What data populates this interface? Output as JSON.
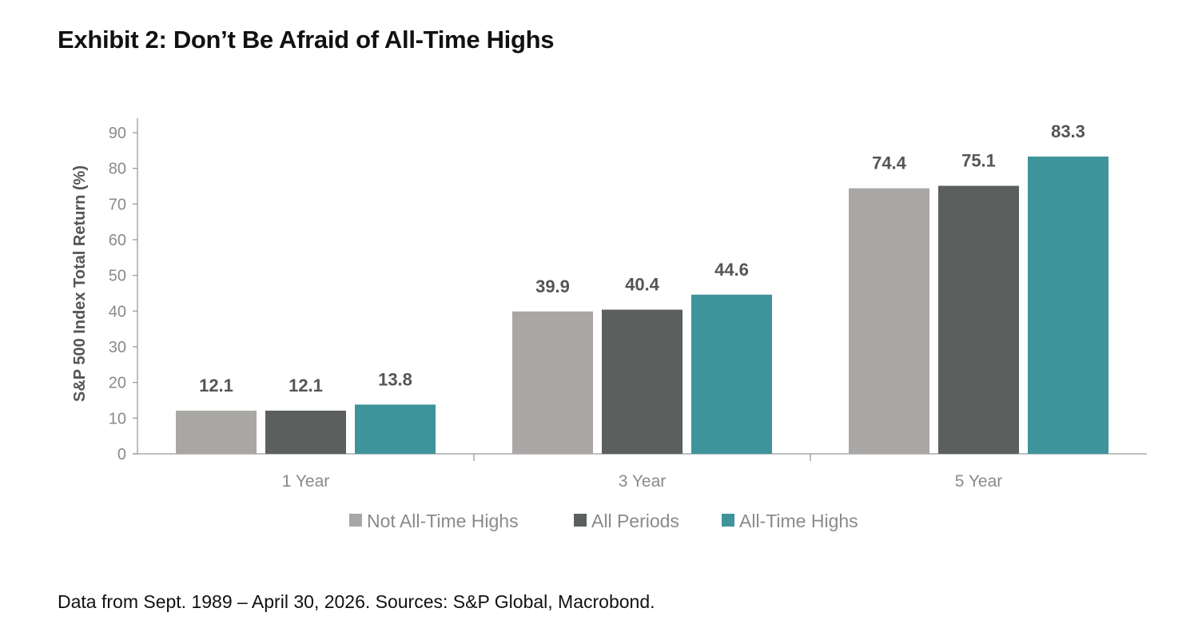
{
  "header": {
    "title": "Exhibit 2: Don’t Be Afraid of All-Time Highs"
  },
  "footer": {
    "source": "Data from Sept. 1989 – April 30, 2026. Sources: S&P Global, Macrobond."
  },
  "chart_data": {
    "type": "bar",
    "title": "",
    "xlabel": "",
    "ylabel": "S&P 500 Index Total Return (%)",
    "ylim": [
      0,
      90
    ],
    "yticks": [
      0,
      10,
      20,
      30,
      40,
      50,
      60,
      70,
      80,
      90
    ],
    "categories": [
      "1 Year",
      "3 Year",
      "5 Year"
    ],
    "series": [
      {
        "name": "Not All-Time Highs",
        "color": "#a9a7a5",
        "values": [
          12.1,
          39.9,
          74.4
        ],
        "labels": [
          "12.1",
          "39.9",
          "74.4"
        ]
      },
      {
        "name": "All Periods",
        "color": "#5b605e",
        "values": [
          12.1,
          40.4,
          75.1
        ],
        "labels": [
          "12.1",
          "40.4",
          "75.1"
        ]
      },
      {
        "name": "All-Time Highs",
        "color": "#3f939b",
        "values": [
          13.8,
          44.6,
          83.3
        ],
        "labels": [
          "13.8",
          "44.6",
          "83.3"
        ]
      }
    ],
    "grid": false,
    "legend_position": "bottom"
  }
}
